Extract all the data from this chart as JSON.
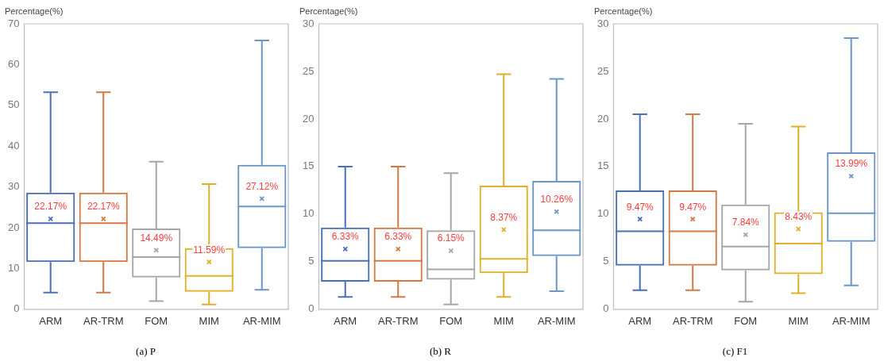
{
  "chart_data": [
    {
      "type": "box",
      "title": "(a) P",
      "ylabel": "Percentage(%)",
      "categories": [
        "ARM",
        "AR-TRM",
        "FOM",
        "MIM",
        "AR-MIM"
      ],
      "colors": [
        "#4a6fb5",
        "#d27a45",
        "#a6a6a6",
        "#e0b02a",
        "#6a96c8"
      ],
      "marker": "cross",
      "grid": false,
      "legend": false,
      "ylim": [
        0,
        70
      ],
      "yticks": [
        0,
        10,
        20,
        30,
        40,
        50,
        60,
        70
      ],
      "boxes": [
        {
          "low": 4.1,
          "q1": 11.6,
          "median": 21.1,
          "q3": 28.6,
          "high": 53.2,
          "mean": 22.17
        },
        {
          "low": 4.1,
          "q1": 11.6,
          "median": 21.1,
          "q3": 28.6,
          "high": 53.2,
          "mean": 22.17
        },
        {
          "low": 2.0,
          "q1": 7.8,
          "median": 12.8,
          "q3": 19.8,
          "high": 36.2,
          "mean": 14.49
        },
        {
          "low": 1.2,
          "q1": 4.3,
          "median": 8.2,
          "q3": 15.0,
          "high": 30.7,
          "mean": 11.59
        },
        {
          "low": 4.8,
          "q1": 15.0,
          "median": 25.2,
          "q3": 35.4,
          "high": 65.9,
          "mean": 27.12
        }
      ],
      "annotations": [
        "22.17%",
        "22.17%",
        "14.49%",
        "11.59%",
        "27.12%"
      ]
    },
    {
      "type": "box",
      "title": "(b) R",
      "ylabel": "Percentage(%)",
      "categories": [
        "ARM",
        "AR-TRM",
        "FOM",
        "MIM",
        "AR-MIM"
      ],
      "colors": [
        "#4a6fb5",
        "#d27a45",
        "#a6a6a6",
        "#e0b02a",
        "#6a96c8"
      ],
      "marker": "cross",
      "grid": false,
      "legend": false,
      "ylim": [
        0,
        30
      ],
      "yticks": [
        0,
        5,
        10,
        15,
        20,
        25,
        30
      ],
      "boxes": [
        {
          "low": 1.3,
          "q1": 2.9,
          "median": 5.1,
          "q3": 8.6,
          "high": 15.0,
          "mean": 6.33
        },
        {
          "low": 1.3,
          "q1": 2.9,
          "median": 5.1,
          "q3": 8.6,
          "high": 15.0,
          "mean": 6.33
        },
        {
          "low": 0.5,
          "q1": 3.1,
          "median": 4.2,
          "q3": 8.3,
          "high": 14.3,
          "mean": 6.15
        },
        {
          "low": 1.3,
          "q1": 3.8,
          "median": 5.3,
          "q3": 13.0,
          "high": 24.7,
          "mean": 8.37
        },
        {
          "low": 1.9,
          "q1": 5.6,
          "median": 8.3,
          "q3": 13.5,
          "high": 24.2,
          "mean": 10.26
        }
      ],
      "annotations": [
        "6.33%",
        "6.33%",
        "6.15%",
        "8.37%",
        "10.26%"
      ]
    },
    {
      "type": "box",
      "title": "(c) F1",
      "ylabel": "Percentage(%)",
      "categories": [
        "ARM",
        "AR-TRM",
        "FOM",
        "MIM",
        "AR-MIM"
      ],
      "colors": [
        "#4a6fb5",
        "#d27a45",
        "#a6a6a6",
        "#e0b02a",
        "#6a96c8"
      ],
      "marker": "cross",
      "grid": false,
      "legend": false,
      "ylim": [
        0,
        30
      ],
      "yticks": [
        0,
        5,
        10,
        15,
        20,
        25,
        30
      ],
      "boxes": [
        {
          "low": 2.0,
          "q1": 4.6,
          "median": 8.2,
          "q3": 12.5,
          "high": 20.5,
          "mean": 9.47
        },
        {
          "low": 2.0,
          "q1": 4.6,
          "median": 8.2,
          "q3": 12.5,
          "high": 20.5,
          "mean": 9.47
        },
        {
          "low": 0.8,
          "q1": 4.1,
          "median": 6.6,
          "q3": 11.0,
          "high": 19.5,
          "mean": 7.84
        },
        {
          "low": 1.7,
          "q1": 3.7,
          "median": 6.9,
          "q3": 10.2,
          "high": 19.2,
          "mean": 8.43
        },
        {
          "low": 2.5,
          "q1": 7.1,
          "median": 10.1,
          "q3": 16.5,
          "high": 28.5,
          "mean": 13.99
        }
      ],
      "annotations": [
        "9.47%",
        "9.47%",
        "7.84%",
        "8.43%",
        "13.99%"
      ]
    }
  ]
}
